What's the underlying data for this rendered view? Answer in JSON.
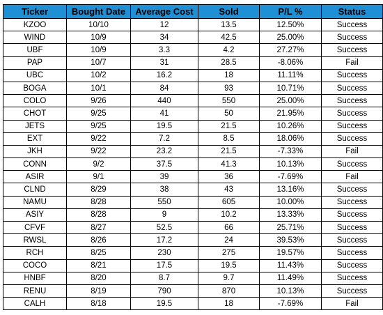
{
  "table": {
    "header_color": "#1f8fd6",
    "columns": [
      "Ticker",
      "Bought Date",
      "Average Cost",
      "Sold",
      "P/L %",
      "Status"
    ],
    "rows": [
      [
        "KZOO",
        "10/10",
        "12",
        "13.5",
        "12.50%",
        "Success"
      ],
      [
        "WIND",
        "10/9",
        "34",
        "42.5",
        "25.00%",
        "Success"
      ],
      [
        "UBF",
        "10/9",
        "3.3",
        "4.2",
        "27.27%",
        "Success"
      ],
      [
        "PAP",
        "10/7",
        "31",
        "28.5",
        "-8.06%",
        "Fail"
      ],
      [
        "UBC",
        "10/2",
        "16.2",
        "18",
        "11.11%",
        "Success"
      ],
      [
        "BOGA",
        "10/1",
        "84",
        "93",
        "10.71%",
        "Success"
      ],
      [
        "COLO",
        "9/26",
        "440",
        "550",
        "25.00%",
        "Success"
      ],
      [
        "CHOT",
        "9/25",
        "41",
        "50",
        "21.95%",
        "Success"
      ],
      [
        "JETS",
        "9/25",
        "19.5",
        "21.5",
        "10.26%",
        "Success"
      ],
      [
        "EXT",
        "9/22",
        "7.2",
        "8.5",
        "18.06%",
        "Success"
      ],
      [
        "JKH",
        "9/22",
        "23.2",
        "21.5",
        "-7.33%",
        "Fail"
      ],
      [
        "CONN",
        "9/2",
        "37.5",
        "41.3",
        "10.13%",
        "Success"
      ],
      [
        "ASIR",
        "9/1",
        "39",
        "36",
        "-7.69%",
        "Fail"
      ],
      [
        "CLND",
        "8/29",
        "38",
        "43",
        "13.16%",
        "Success"
      ],
      [
        "NAMU",
        "8/28",
        "550",
        "605",
        "10.00%",
        "Success"
      ],
      [
        "ASIY",
        "8/28",
        "9",
        "10.2",
        "13.33%",
        "Success"
      ],
      [
        "CFVF",
        "8/27",
        "52.5",
        "66",
        "25.71%",
        "Success"
      ],
      [
        "RWSL",
        "8/26",
        "17.2",
        "24",
        "39.53%",
        "Success"
      ],
      [
        "RCH",
        "8/25",
        "230",
        "275",
        "19.57%",
        "Success"
      ],
      [
        "COCO",
        "8/21",
        "17.5",
        "19.5",
        "11.43%",
        "Success"
      ],
      [
        "HNBF",
        "8/20",
        "8.7",
        "9.7",
        "11.49%",
        "Success"
      ],
      [
        "RENU",
        "8/19",
        "790",
        "870",
        "10.13%",
        "Success"
      ],
      [
        "CALH",
        "8/18",
        "19.5",
        "18",
        "-7.69%",
        "Fail"
      ]
    ]
  }
}
